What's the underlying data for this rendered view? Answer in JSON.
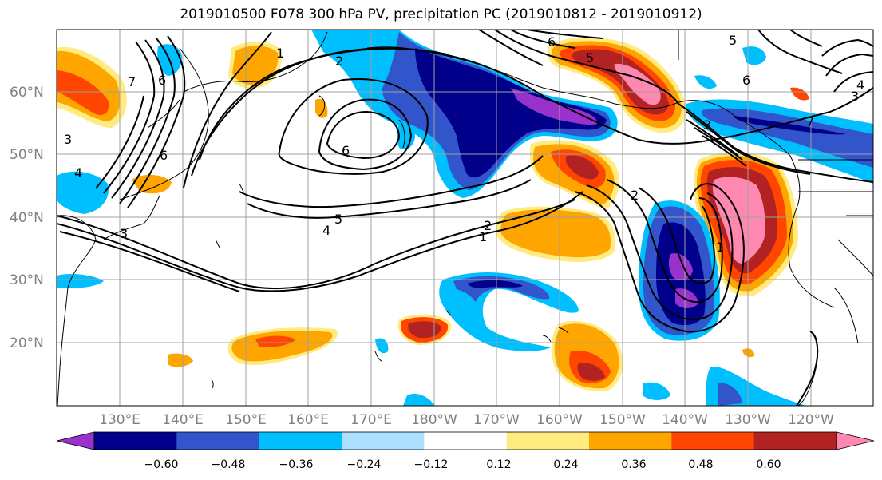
{
  "title": "2019010500 F078 300 hPa PV, precipitation PC (2019010812 - 2019010912)",
  "lat_labels": [
    "60°N",
    "50°N",
    "40°N",
    "30°N",
    "20°N"
  ],
  "lon_labels": [
    "130°E",
    "140°E",
    "150°E",
    "160°E",
    "170°E",
    "180°W",
    "170°W",
    "160°W",
    "150°W",
    "140°W",
    "130°W",
    "120°W"
  ],
  "colorbar": {
    "ticks": [
      "−0.60",
      "−0.48",
      "−0.36",
      "−0.24",
      "−0.12",
      "0.12",
      "0.24",
      "0.36",
      "0.48",
      "0.60"
    ],
    "colors": [
      "#9932CC",
      "#00008B",
      "#3355CC",
      "#00BFFF",
      "#ADDFFF",
      "#FFFFFF",
      "#FFEB80",
      "#FFA500",
      "#FF4500",
      "#B22222",
      "#FF88B0"
    ]
  },
  "contour_labels": [
    "1",
    "2",
    "6",
    "7",
    "6",
    "5",
    "4",
    "3",
    "1",
    "2",
    "6",
    "3",
    "5",
    "5",
    "4",
    "3",
    "6",
    "7",
    "4",
    "3",
    "1",
    "2",
    "6"
  ]
}
